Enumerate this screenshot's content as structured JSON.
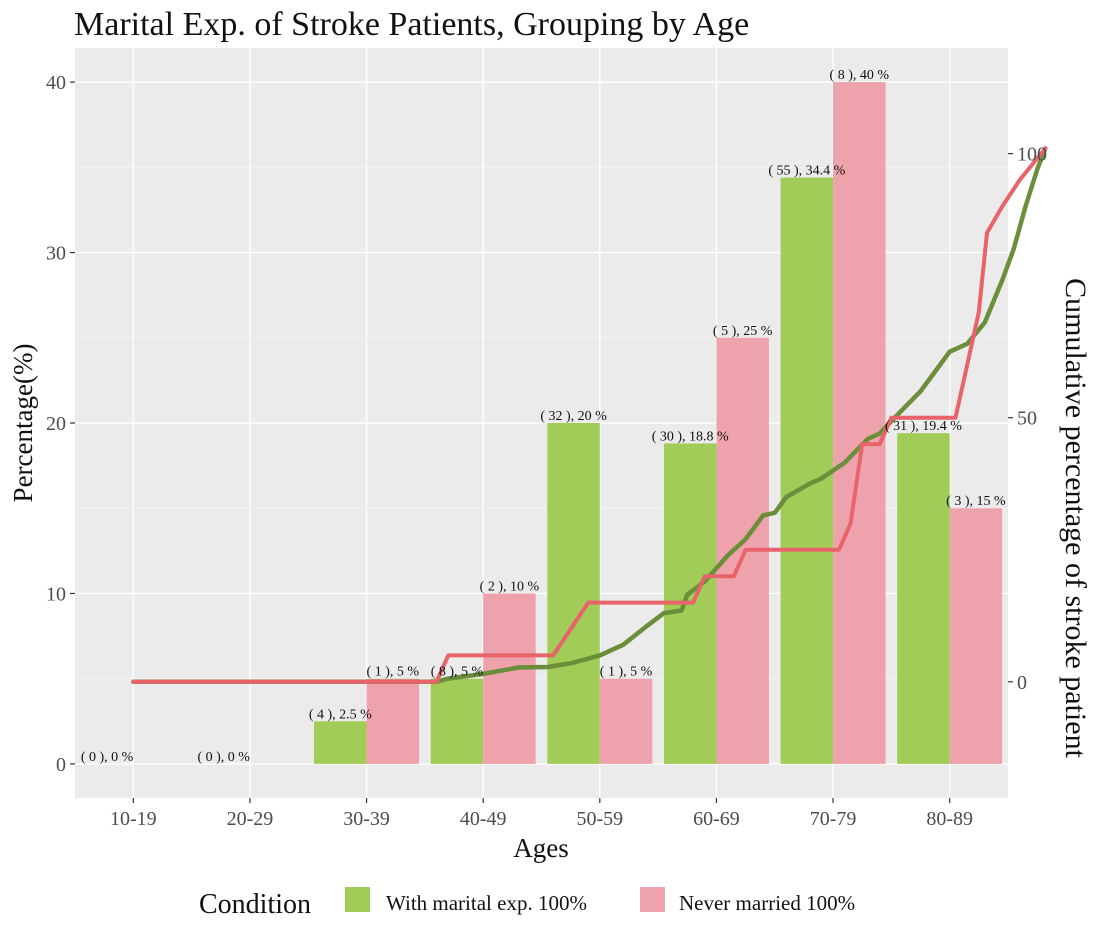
{
  "chart_data": {
    "type": "bar",
    "title": "Marital Exp. of Stroke Patients, Grouping by Age",
    "xlabel": "Ages",
    "ylabel": "Percentage(%)",
    "y2label": "Cumulative percentage of stroke patient",
    "categories": [
      "10-19",
      "20-29",
      "30-39",
      "40-49",
      "50-59",
      "60-69",
      "70-79",
      "80-89"
    ],
    "ylim": [
      -2,
      42
    ],
    "yticks": [
      0,
      10,
      20,
      30,
      40
    ],
    "y2lim": [
      -22,
      120
    ],
    "y2ticks": [
      0,
      50,
      100
    ],
    "grid": true,
    "series": [
      {
        "name": "With marital exp. 100%",
        "color": "#a1cc57",
        "values": [
          0,
          0,
          2.5,
          5,
          20,
          18.8,
          34.4,
          19.4
        ],
        "labels": [
          "( 0 ), 0 %",
          "( 0 ), 0 %",
          "( 4 ), 2.5 %",
          "( 8 ), 5 %",
          "( 32 ), 20 %",
          "( 30 ), 18.8 %",
          "( 55 ), 34.4 %",
          "( 31 ), 19.4 %"
        ]
      },
      {
        "name": "Never married 100%",
        "color": "#eea2ab",
        "values": [
          0,
          0,
          5,
          10,
          5,
          25,
          40,
          15
        ],
        "labels": [
          "",
          "",
          "( 1 ), 5 %",
          "( 2 ), 10 %",
          "( 1 ), 5 %",
          "( 5 ), 25 %",
          "( 8 ), 40 %",
          "( 3 ), 15 %"
        ]
      }
    ],
    "cumulative_lines": [
      {
        "series": "With marital exp. 100%",
        "color": "#6b8e3a",
        "points": [
          [
            1,
            0
          ],
          [
            3.6,
            0
          ],
          [
            3.7,
            0.6
          ],
          [
            4.0,
            1.5
          ],
          [
            4.3,
            2.7
          ],
          [
            4.55,
            2.8
          ],
          [
            4.75,
            3.5
          ],
          [
            5.0,
            5.0
          ],
          [
            5.2,
            7.0
          ],
          [
            5.4,
            10.5
          ],
          [
            5.55,
            13.0
          ],
          [
            5.7,
            13.5
          ],
          [
            5.75,
            16.5
          ],
          [
            5.9,
            19.0
          ],
          [
            6.1,
            24.0
          ],
          [
            6.25,
            27.0
          ],
          [
            6.4,
            31.5
          ],
          [
            6.5,
            32.0
          ],
          [
            6.6,
            35.0
          ],
          [
            6.8,
            37.5
          ],
          [
            6.9,
            38.5
          ],
          [
            7.1,
            41.5
          ],
          [
            7.3,
            46.0
          ],
          [
            7.4,
            47.0
          ],
          [
            7.55,
            50.5
          ],
          [
            7.75,
            55.0
          ],
          [
            7.85,
            58.0
          ],
          [
            8.0,
            62.5
          ],
          [
            8.15,
            64.0
          ],
          [
            8.3,
            68.0
          ],
          [
            8.45,
            76.0
          ],
          [
            8.55,
            82.0
          ],
          [
            8.65,
            90.0
          ],
          [
            8.75,
            97.0
          ],
          [
            8.82,
            101.0
          ]
        ]
      },
      {
        "series": "Never married 100%",
        "color": "#e8636a",
        "points": [
          [
            1,
            0
          ],
          [
            3.6,
            0
          ],
          [
            3.7,
            5.0
          ],
          [
            4.6,
            5.0
          ],
          [
            4.75,
            10.0
          ],
          [
            4.9,
            15.0
          ],
          [
            5.8,
            15.0
          ],
          [
            5.9,
            20.0
          ],
          [
            6.15,
            20.0
          ],
          [
            6.25,
            25.0
          ],
          [
            7.05,
            25.0
          ],
          [
            7.15,
            30.0
          ],
          [
            7.25,
            45.0
          ],
          [
            7.4,
            45.0
          ],
          [
            7.5,
            50.0
          ],
          [
            8.05,
            50.0
          ],
          [
            8.15,
            60.0
          ],
          [
            8.25,
            70.0
          ],
          [
            8.32,
            85.0
          ],
          [
            8.45,
            90.0
          ],
          [
            8.6,
            95.0
          ],
          [
            8.82,
            101.0
          ]
        ]
      }
    ],
    "legend_title": "Condition",
    "legend_placement": "bottom"
  }
}
